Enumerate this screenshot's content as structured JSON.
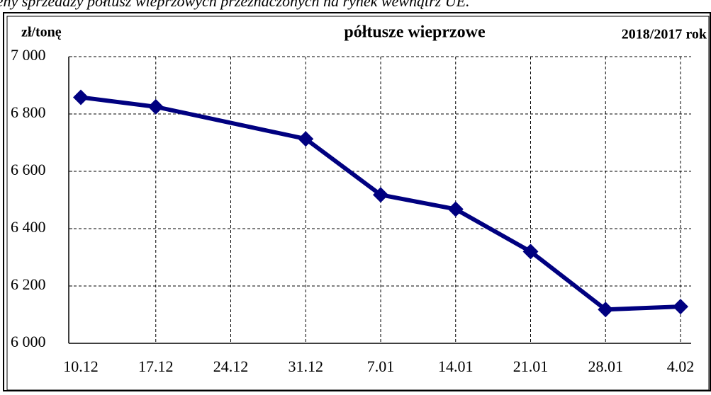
{
  "chart_data": {
    "type": "line",
    "caption": "Ceny sprzedaży półtusz wieprzowych przeznaczonych na rynek wewnątrz UE.",
    "title": "półtusze wieprzowe",
    "subtitle": "2018/2017 rok",
    "y_label": "zł/tonę",
    "categories": [
      "10.12",
      "17.12",
      "24.12",
      "31.12",
      "7.01",
      "14.01",
      "21.01",
      "28.01",
      "4.02"
    ],
    "series": [
      {
        "name": "2018/2017",
        "color": "#000080",
        "values": [
          6858,
          6825,
          null,
          6713,
          6518,
          6468,
          6320,
          6118,
          6128
        ]
      }
    ],
    "ylim": [
      6000,
      7000
    ],
    "yticks": [
      {
        "value": 6000,
        "label": "6 000"
      },
      {
        "value": 6200,
        "label": "6 200"
      },
      {
        "value": 6400,
        "label": "6 400"
      },
      {
        "value": 6600,
        "label": "6 600"
      },
      {
        "value": 6800,
        "label": "6 800"
      },
      {
        "value": 7000,
        "label": "7 000"
      }
    ],
    "grid": true
  }
}
